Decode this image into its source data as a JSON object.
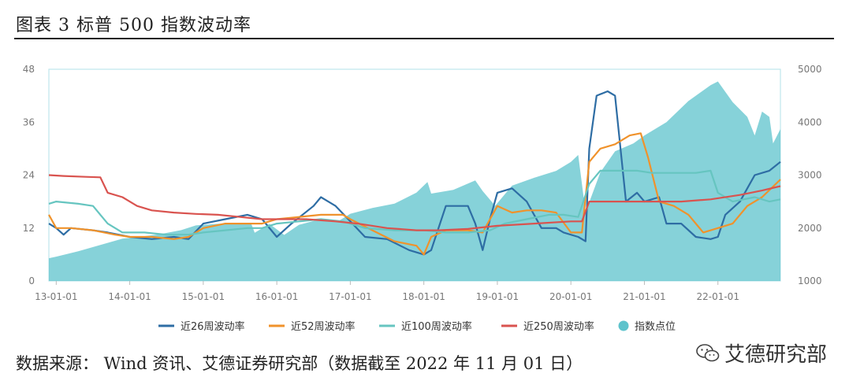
{
  "title": "图表 3 标普 500 指数波动率",
  "source": "数据来源： Wind 资讯、艾德证券研究部（数据截至 2022 年 11 月 01 日）",
  "watermark": "艾德研究部",
  "colors": {
    "s26": "#2e6da4",
    "s52": "#f0922b",
    "s100": "#66c5c0",
    "s250": "#d9534f",
    "index": "#5ec3cc",
    "frame": "#bfe6ec"
  },
  "chart_data": {
    "type": "line",
    "x_ticks": [
      "13-01-01",
      "14-01-01",
      "15-01-01",
      "16-01-01",
      "17-01-01",
      "18-01-01",
      "19-01-01",
      "20-01-01",
      "21-01-01",
      "22-01-01"
    ],
    "x_range": [
      2012.9,
      2022.85
    ],
    "y_left": {
      "ylim": [
        0,
        48
      ],
      "ticks": [
        0,
        12,
        24,
        36,
        48
      ]
    },
    "y_right": {
      "ylim": [
        1000,
        5000
      ],
      "ticks": [
        1000,
        2000,
        3000,
        4000,
        5000
      ]
    },
    "legend_position": "bottom",
    "series": [
      {
        "name": "近26周波动率",
        "kind": "line",
        "axis": "left",
        "color_key": "s26",
        "points": [
          [
            2012.9,
            13
          ],
          [
            2013.0,
            12
          ],
          [
            2013.1,
            10.5
          ],
          [
            2013.2,
            12
          ],
          [
            2013.5,
            11.5
          ],
          [
            2013.7,
            11
          ],
          [
            2014.0,
            10
          ],
          [
            2014.3,
            9.5
          ],
          [
            2014.6,
            10
          ],
          [
            2014.8,
            9.5
          ],
          [
            2015.0,
            13
          ],
          [
            2015.3,
            14
          ],
          [
            2015.6,
            15
          ],
          [
            2015.8,
            14
          ],
          [
            2016.0,
            10
          ],
          [
            2016.2,
            13
          ],
          [
            2016.5,
            17
          ],
          [
            2016.6,
            19
          ],
          [
            2016.8,
            17
          ],
          [
            2017.0,
            13.5
          ],
          [
            2017.2,
            10
          ],
          [
            2017.5,
            9.5
          ],
          [
            2017.8,
            7
          ],
          [
            2018.0,
            6
          ],
          [
            2018.1,
            7
          ],
          [
            2018.3,
            17
          ],
          [
            2018.6,
            17
          ],
          [
            2018.7,
            13
          ],
          [
            2018.8,
            7
          ],
          [
            2018.9,
            14
          ],
          [
            2019.0,
            20
          ],
          [
            2019.2,
            21
          ],
          [
            2019.4,
            18
          ],
          [
            2019.6,
            12
          ],
          [
            2019.8,
            12
          ],
          [
            2019.9,
            11
          ],
          [
            2020.1,
            10
          ],
          [
            2020.2,
            9
          ],
          [
            2020.25,
            30
          ],
          [
            2020.35,
            42
          ],
          [
            2020.5,
            43
          ],
          [
            2020.6,
            42
          ],
          [
            2020.75,
            18
          ],
          [
            2020.9,
            20
          ],
          [
            2021.0,
            18
          ],
          [
            2021.2,
            19
          ],
          [
            2021.3,
            13
          ],
          [
            2021.5,
            13
          ],
          [
            2021.7,
            10
          ],
          [
            2021.9,
            9.5
          ],
          [
            2022.0,
            10
          ],
          [
            2022.1,
            15
          ],
          [
            2022.3,
            18
          ],
          [
            2022.4,
            21
          ],
          [
            2022.5,
            24
          ],
          [
            2022.7,
            25
          ],
          [
            2022.85,
            27
          ]
        ]
      },
      {
        "name": "近52周波动率",
        "kind": "line",
        "axis": "left",
        "color_key": "s52",
        "points": [
          [
            2012.9,
            15
          ],
          [
            2013.0,
            12
          ],
          [
            2013.2,
            12
          ],
          [
            2013.5,
            11.5
          ],
          [
            2013.8,
            10.5
          ],
          [
            2014.0,
            10
          ],
          [
            2014.3,
            10
          ],
          [
            2014.6,
            9.5
          ],
          [
            2014.8,
            10
          ],
          [
            2015.0,
            12
          ],
          [
            2015.3,
            13
          ],
          [
            2015.6,
            13
          ],
          [
            2015.8,
            13
          ],
          [
            2016.0,
            14
          ],
          [
            2016.3,
            14.5
          ],
          [
            2016.6,
            15
          ],
          [
            2016.9,
            15
          ],
          [
            2017.0,
            14
          ],
          [
            2017.3,
            11.5
          ],
          [
            2017.6,
            9
          ],
          [
            2017.9,
            8
          ],
          [
            2018.0,
            6
          ],
          [
            2018.1,
            10
          ],
          [
            2018.3,
            11.5
          ],
          [
            2018.6,
            11.5
          ],
          [
            2018.8,
            11
          ],
          [
            2019.0,
            17
          ],
          [
            2019.2,
            15.5
          ],
          [
            2019.4,
            16
          ],
          [
            2019.6,
            16
          ],
          [
            2019.8,
            15.5
          ],
          [
            2020.0,
            11
          ],
          [
            2020.15,
            11
          ],
          [
            2020.25,
            27
          ],
          [
            2020.4,
            30
          ],
          [
            2020.6,
            31
          ],
          [
            2020.8,
            33
          ],
          [
            2020.95,
            33.5
          ],
          [
            2021.05,
            28
          ],
          [
            2021.2,
            18
          ],
          [
            2021.4,
            17
          ],
          [
            2021.6,
            15
          ],
          [
            2021.8,
            11
          ],
          [
            2022.0,
            12
          ],
          [
            2022.2,
            13
          ],
          [
            2022.4,
            17
          ],
          [
            2022.6,
            19
          ],
          [
            2022.85,
            23
          ]
        ]
      },
      {
        "name": "近100周波动率",
        "kind": "line",
        "axis": "left",
        "color_key": "s100",
        "points": [
          [
            2012.9,
            17.5
          ],
          [
            2013.0,
            18
          ],
          [
            2013.3,
            17.5
          ],
          [
            2013.5,
            17
          ],
          [
            2013.7,
            13
          ],
          [
            2013.9,
            11
          ],
          [
            2014.2,
            11
          ],
          [
            2014.5,
            10.5
          ],
          [
            2014.8,
            10.5
          ],
          [
            2015.0,
            11
          ],
          [
            2015.3,
            11.5
          ],
          [
            2015.6,
            12
          ],
          [
            2015.8,
            12
          ],
          [
            2016.0,
            13
          ],
          [
            2016.3,
            13.5
          ],
          [
            2016.6,
            14
          ],
          [
            2016.9,
            13.5
          ],
          [
            2017.2,
            12
          ],
          [
            2017.6,
            11.5
          ],
          [
            2018.0,
            11.5
          ],
          [
            2018.3,
            11
          ],
          [
            2018.6,
            11
          ],
          [
            2018.9,
            11.5
          ],
          [
            2019.1,
            13
          ],
          [
            2019.4,
            14
          ],
          [
            2019.7,
            15
          ],
          [
            2019.9,
            15
          ],
          [
            2020.1,
            14.5
          ],
          [
            2020.25,
            22
          ],
          [
            2020.4,
            25
          ],
          [
            2020.6,
            25
          ],
          [
            2020.9,
            25
          ],
          [
            2021.1,
            24.5
          ],
          [
            2021.4,
            24.5
          ],
          [
            2021.7,
            24.5
          ],
          [
            2021.9,
            25
          ],
          [
            2022.0,
            20
          ],
          [
            2022.2,
            18
          ],
          [
            2022.5,
            19
          ],
          [
            2022.7,
            18
          ],
          [
            2022.85,
            18.5
          ]
        ]
      },
      {
        "name": "近250周波动率",
        "kind": "line",
        "axis": "left",
        "color_key": "s250",
        "points": [
          [
            2012.9,
            24
          ],
          [
            2013.1,
            23.8
          ],
          [
            2013.4,
            23.6
          ],
          [
            2013.6,
            23.5
          ],
          [
            2013.7,
            20
          ],
          [
            2013.9,
            19
          ],
          [
            2014.1,
            17
          ],
          [
            2014.3,
            16
          ],
          [
            2014.6,
            15.5
          ],
          [
            2014.9,
            15.2
          ],
          [
            2015.2,
            15
          ],
          [
            2015.5,
            14.5
          ],
          [
            2015.8,
            14
          ],
          [
            2016.1,
            14
          ],
          [
            2016.4,
            14
          ],
          [
            2016.8,
            13.5
          ],
          [
            2017.1,
            13
          ],
          [
            2017.5,
            12
          ],
          [
            2017.9,
            11.5
          ],
          [
            2018.2,
            11.5
          ],
          [
            2018.6,
            11.8
          ],
          [
            2019.0,
            12.5
          ],
          [
            2019.5,
            13
          ],
          [
            2020.0,
            13.5
          ],
          [
            2020.15,
            13.5
          ],
          [
            2020.25,
            18
          ],
          [
            2020.6,
            18
          ],
          [
            2021.0,
            18
          ],
          [
            2021.5,
            18
          ],
          [
            2021.9,
            18.5
          ],
          [
            2022.3,
            19.5
          ],
          [
            2022.6,
            20.5
          ],
          [
            2022.85,
            21.5
          ]
        ]
      },
      {
        "name": "指数点位",
        "kind": "area",
        "axis": "right",
        "color_key": "index",
        "points": [
          [
            2012.9,
            1430
          ],
          [
            2013.0,
            1460
          ],
          [
            2013.3,
            1560
          ],
          [
            2013.6,
            1680
          ],
          [
            2013.9,
            1800
          ],
          [
            2014.1,
            1830
          ],
          [
            2014.4,
            1880
          ],
          [
            2014.7,
            1960
          ],
          [
            2014.9,
            2050
          ],
          [
            2015.2,
            2080
          ],
          [
            2015.5,
            2100
          ],
          [
            2015.65,
            2090
          ],
          [
            2015.7,
            1910
          ],
          [
            2015.9,
            2080
          ],
          [
            2016.1,
            1870
          ],
          [
            2016.3,
            2060
          ],
          [
            2016.6,
            2170
          ],
          [
            2016.85,
            2140
          ],
          [
            2017.0,
            2270
          ],
          [
            2017.3,
            2380
          ],
          [
            2017.6,
            2460
          ],
          [
            2017.9,
            2670
          ],
          [
            2018.05,
            2870
          ],
          [
            2018.1,
            2650
          ],
          [
            2018.4,
            2720
          ],
          [
            2018.7,
            2900
          ],
          [
            2018.8,
            2700
          ],
          [
            2018.97,
            2420
          ],
          [
            2019.2,
            2800
          ],
          [
            2019.5,
            2950
          ],
          [
            2019.8,
            3080
          ],
          [
            2020.0,
            3250
          ],
          [
            2020.1,
            3380
          ],
          [
            2020.2,
            2300
          ],
          [
            2020.4,
            3050
          ],
          [
            2020.6,
            3450
          ],
          [
            2020.85,
            3600
          ],
          [
            2021.0,
            3750
          ],
          [
            2021.3,
            4000
          ],
          [
            2021.6,
            4400
          ],
          [
            2021.9,
            4700
          ],
          [
            2022.0,
            4770
          ],
          [
            2022.2,
            4380
          ],
          [
            2022.4,
            4100
          ],
          [
            2022.5,
            3750
          ],
          [
            2022.6,
            4200
          ],
          [
            2022.7,
            4100
          ],
          [
            2022.75,
            3600
          ],
          [
            2022.85,
            3870
          ]
        ]
      }
    ]
  }
}
